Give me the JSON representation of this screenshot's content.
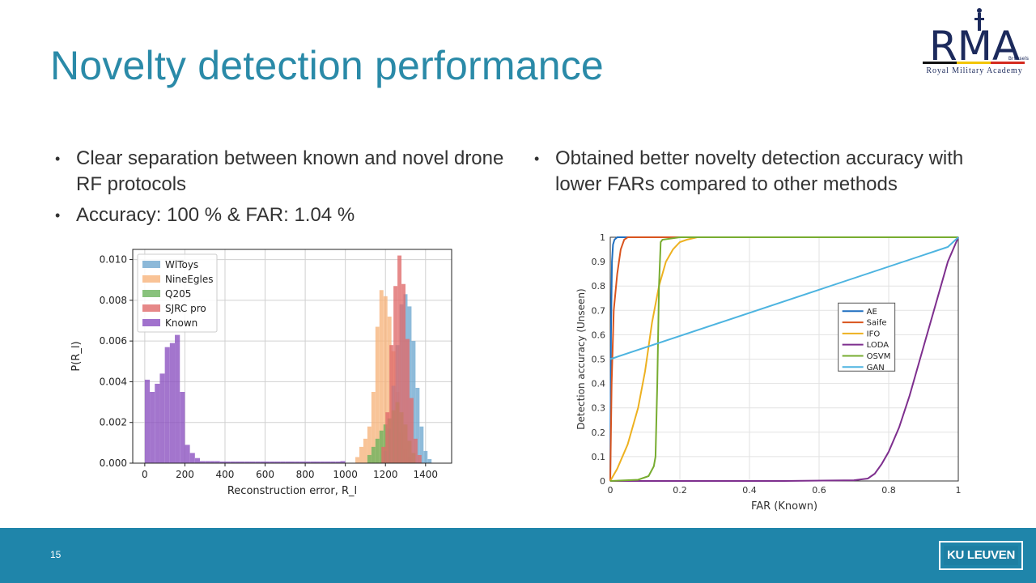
{
  "slide": {
    "title": "Novelty detection performance",
    "page_number": "15",
    "left_bullets": [
      "Clear separation between known and novel drone RF protocols",
      "Accuracy: 100 % & FAR: 1.04 %"
    ],
    "right_bullets": [
      "Obtained better novelty detection accuracy with lower FARs compared to other methods"
    ],
    "logo": {
      "main": "RMA",
      "small": "Brussels",
      "subtitle": "Royal Military Academy",
      "flag_colors": [
        "#111111",
        "#f2c500",
        "#d42a1f"
      ]
    },
    "footer_logo": "KU LEUVEN",
    "colors": {
      "title": "#2a8aa8",
      "footer": "#1f85aa",
      "logo_navy": "#1c2a5c"
    }
  },
  "chart_data": [
    {
      "type": "bar",
      "subtype": "histogram",
      "xlabel": "Reconstruction error, R_l",
      "ylabel": "P(R_l)",
      "xlim": [
        -60,
        1530
      ],
      "ylim": [
        0,
        0.0105
      ],
      "xticks": [
        0,
        200,
        400,
        600,
        800,
        1000,
        1200,
        1400
      ],
      "xtick_labels": [
        "0",
        "200",
        "400",
        "600",
        "800",
        "1000",
        "1200",
        "1400"
      ],
      "yticks": [
        0,
        0.002,
        0.004,
        0.006,
        0.008,
        0.01
      ],
      "ytick_labels": [
        "0.000",
        "0.002",
        "0.004",
        "0.006",
        "0.008",
        "0.010"
      ],
      "grid": true,
      "legend_position": "top-left",
      "series": [
        {
          "name": "Known",
          "color": "#8a4fc0",
          "bins": [
            [
              0,
              25,
              0.0041
            ],
            [
              25,
              50,
              0.0035
            ],
            [
              50,
              75,
              0.0039
            ],
            [
              75,
              100,
              0.0044
            ],
            [
              100,
              125,
              0.0057
            ],
            [
              125,
              150,
              0.0059
            ],
            [
              150,
              175,
              0.0063
            ],
            [
              175,
              200,
              0.0035
            ],
            [
              200,
              225,
              0.0009
            ],
            [
              225,
              250,
              0.0005
            ],
            [
              250,
              275,
              0.00025
            ],
            [
              275,
              300,
              0.0001
            ],
            [
              300,
              325,
              0.0001
            ],
            [
              325,
              350,
              0.0001
            ],
            [
              350,
              375,
              0.0001
            ],
            [
              375,
              400,
              8e-05
            ],
            [
              400,
              425,
              8e-05
            ],
            [
              425,
              450,
              8e-05
            ],
            [
              450,
              475,
              8e-05
            ],
            [
              475,
              500,
              8e-05
            ],
            [
              500,
              525,
              8e-05
            ],
            [
              525,
              550,
              8e-05
            ],
            [
              550,
              575,
              8e-05
            ],
            [
              575,
              600,
              8e-05
            ],
            [
              600,
              625,
              8e-05
            ],
            [
              625,
              650,
              8e-05
            ],
            [
              650,
              675,
              8e-05
            ],
            [
              675,
              700,
              8e-05
            ],
            [
              700,
              725,
              8e-05
            ],
            [
              725,
              750,
              8e-05
            ],
            [
              750,
              775,
              8e-05
            ],
            [
              775,
              800,
              8e-05
            ],
            [
              800,
              825,
              8e-05
            ],
            [
              825,
              850,
              8e-05
            ],
            [
              850,
              875,
              8e-05
            ],
            [
              875,
              900,
              8e-05
            ],
            [
              900,
              925,
              8e-05
            ],
            [
              925,
              950,
              8e-05
            ],
            [
              950,
              975,
              8e-05
            ],
            [
              975,
              1000,
              0.0001
            ]
          ]
        },
        {
          "name": "NineEgles",
          "color": "#f7b47c",
          "bins": [
            [
              1050,
              1070,
              0.0003
            ],
            [
              1070,
              1090,
              0.0008
            ],
            [
              1090,
              1110,
              0.0012
            ],
            [
              1110,
              1130,
              0.0018
            ],
            [
              1130,
              1150,
              0.0035
            ],
            [
              1150,
              1170,
              0.0067
            ],
            [
              1170,
              1190,
              0.0085
            ],
            [
              1190,
              1210,
              0.0082
            ],
            [
              1210,
              1230,
              0.0072
            ],
            [
              1230,
              1250,
              0.0055
            ],
            [
              1250,
              1270,
              0.0035
            ],
            [
              1270,
              1290,
              0.0015
            ],
            [
              1290,
              1310,
              0.0007
            ],
            [
              1310,
              1330,
              0.0003
            ]
          ]
        },
        {
          "name": "WlToys",
          "color": "#6fa8d0",
          "bins": [
            [
              1190,
              1210,
              0.0006
            ],
            [
              1210,
              1230,
              0.0017
            ],
            [
              1230,
              1250,
              0.0038
            ],
            [
              1250,
              1270,
              0.0058
            ],
            [
              1270,
              1290,
              0.0078
            ],
            [
              1290,
              1310,
              0.0083
            ],
            [
              1310,
              1330,
              0.0077
            ],
            [
              1330,
              1350,
              0.006
            ],
            [
              1350,
              1370,
              0.0037
            ],
            [
              1370,
              1390,
              0.0018
            ],
            [
              1390,
              1410,
              0.0006
            ],
            [
              1410,
              1430,
              0.0002
            ]
          ]
        },
        {
          "name": "Q205",
          "color": "#6cb35c",
          "bins": [
            [
              1110,
              1130,
              0.0004
            ],
            [
              1130,
              1150,
              0.0008
            ],
            [
              1150,
              1170,
              0.0012
            ],
            [
              1170,
              1190,
              0.0016
            ],
            [
              1190,
              1210,
              0.0019
            ],
            [
              1210,
              1230,
              0.0022
            ],
            [
              1230,
              1250,
              0.0026
            ],
            [
              1250,
              1270,
              0.003
            ],
            [
              1270,
              1290,
              0.0025
            ],
            [
              1290,
              1310,
              0.0019
            ],
            [
              1310,
              1330,
              0.0011
            ],
            [
              1330,
              1350,
              0.0005
            ]
          ]
        },
        {
          "name": "SJRC pro",
          "color": "#e06a6a",
          "bins": [
            [
              1180,
              1200,
              0.0008
            ],
            [
              1200,
              1220,
              0.0025
            ],
            [
              1220,
              1240,
              0.0058
            ],
            [
              1240,
              1260,
              0.0087
            ],
            [
              1260,
              1280,
              0.0102
            ],
            [
              1280,
              1300,
              0.0088
            ],
            [
              1300,
              1320,
              0.0061
            ],
            [
              1320,
              1340,
              0.0032
            ],
            [
              1340,
              1360,
              0.0012
            ],
            [
              1360,
              1380,
              0.0004
            ]
          ]
        }
      ]
    },
    {
      "type": "line",
      "xlabel": "FAR (Known)",
      "ylabel": "Detection accuracy (Unseen)",
      "xlim": [
        0,
        1
      ],
      "ylim": [
        0,
        1
      ],
      "xticks": [
        0,
        0.2,
        0.4,
        0.6,
        0.8,
        1
      ],
      "xtick_labels": [
        "0",
        "0.2",
        "0.4",
        "0.6",
        "0.8",
        "1"
      ],
      "yticks": [
        0,
        0.1,
        0.2,
        0.3,
        0.4,
        0.5,
        0.6,
        0.7,
        0.8,
        0.9,
        1
      ],
      "ytick_labels": [
        "0",
        "0.1",
        "0.2",
        "0.3",
        "0.4",
        "0.5",
        "0.6",
        "0.7",
        "0.8",
        "0.9",
        "1"
      ],
      "grid": true,
      "legend_position": "center-right",
      "series": [
        {
          "name": "AE",
          "color": "#1f6fc0",
          "x": [
            0,
            0.002,
            0.005,
            0.008,
            0.012,
            0.02,
            1
          ],
          "y": [
            0,
            0.6,
            0.9,
            0.97,
            0.99,
            1,
            1
          ]
        },
        {
          "name": "Saife",
          "color": "#d9541e",
          "x": [
            0,
            0.004,
            0.01,
            0.02,
            0.03,
            0.04,
            0.05,
            0.1,
            1
          ],
          "y": [
            0,
            0.4,
            0.7,
            0.85,
            0.95,
            0.99,
            1,
            1,
            1
          ]
        },
        {
          "name": "IFO",
          "color": "#edb120",
          "x": [
            0,
            0.02,
            0.05,
            0.08,
            0.1,
            0.12,
            0.14,
            0.16,
            0.18,
            0.2,
            0.22,
            0.25,
            1
          ],
          "y": [
            0,
            0.05,
            0.15,
            0.3,
            0.45,
            0.65,
            0.8,
            0.9,
            0.95,
            0.98,
            0.99,
            1,
            1
          ]
        },
        {
          "name": "LODA",
          "color": "#7e2f8e",
          "x": [
            0,
            0.5,
            0.7,
            0.74,
            0.76,
            0.78,
            0.8,
            0.83,
            0.86,
            0.9,
            0.94,
            0.97,
            1
          ],
          "y": [
            0,
            0,
            0.003,
            0.01,
            0.03,
            0.07,
            0.12,
            0.22,
            0.35,
            0.55,
            0.75,
            0.9,
            1
          ]
        },
        {
          "name": "OSVM",
          "color": "#77ac30",
          "x": [
            0,
            0.08,
            0.11,
            0.125,
            0.13,
            0.135,
            0.14,
            0.145,
            0.15,
            0.2,
            1
          ],
          "y": [
            0,
            0.005,
            0.02,
            0.06,
            0.1,
            0.4,
            0.8,
            0.98,
            0.99,
            1,
            1
          ]
        },
        {
          "name": "GAN",
          "color": "#4db4e0",
          "x": [
            0,
            0.97,
            1
          ],
          "y": [
            0.5,
            0.96,
            1
          ]
        }
      ]
    }
  ]
}
